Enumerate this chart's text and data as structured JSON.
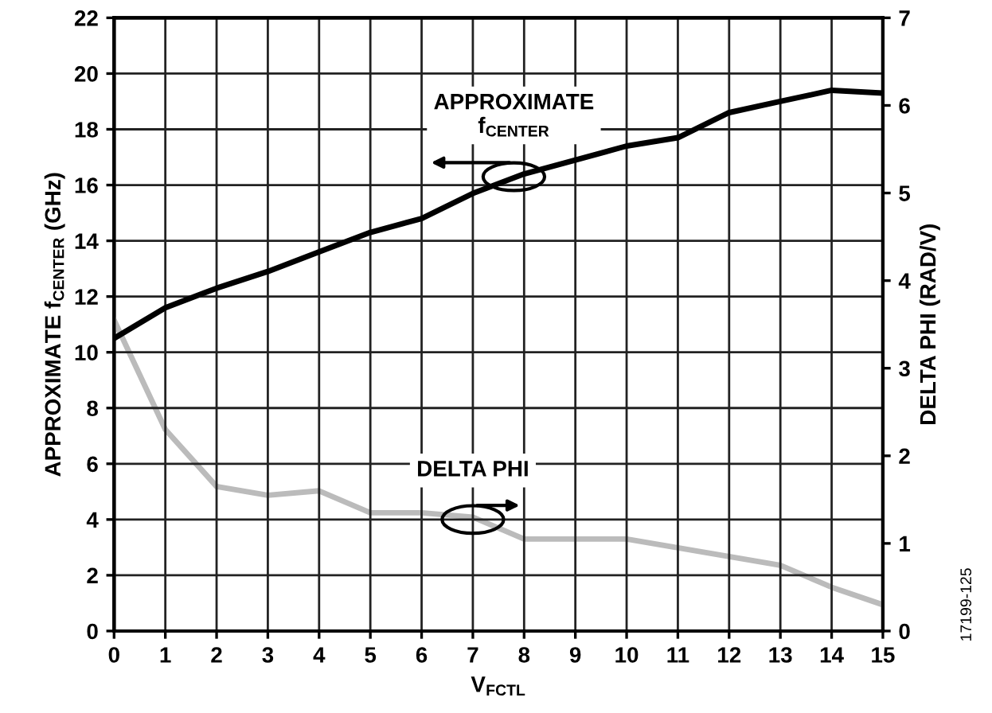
{
  "chart_data": {
    "type": "line",
    "xlabel": "V$_{FCTL}$",
    "ylabel": "APPROXIMATE f$_{CENTER}$ (GHz)",
    "y2label": "DELTA PHI (RAD/V)",
    "x": [
      0,
      1,
      2,
      3,
      4,
      5,
      6,
      7,
      8,
      9,
      10,
      11,
      12,
      13,
      14,
      15
    ],
    "series": [
      {
        "color": "#000000",
        "values": [
          10.5,
          11.6,
          12.3,
          12.9,
          13.6,
          14.3,
          14.8,
          15.7,
          16.4,
          16.9,
          17.4,
          17.7,
          18.6,
          19.0,
          19.4,
          19.3
        ]
      },
      {
        "color": "#bbbbbb",
        "axis": "y2",
        "values": [
          3.55,
          2.3,
          1.65,
          1.55,
          1.6,
          1.35,
          1.35,
          1.3,
          1.05,
          1.05,
          1.05,
          0.95,
          0.85,
          0.75,
          0.5,
          0.3
        ]
      }
    ],
    "xlim": [
      0,
      15
    ],
    "xticks": [
      0,
      1,
      2,
      3,
      4,
      5,
      6,
      7,
      8,
      9,
      10,
      11,
      12,
      13,
      14,
      15
    ],
    "ylim": [
      0,
      22
    ],
    "yticks": [
      0,
      2,
      4,
      6,
      8,
      10,
      12,
      14,
      16,
      18,
      20,
      22
    ],
    "y2lim": [
      0,
      7
    ],
    "y2ticks": [
      0,
      1,
      2,
      3,
      4,
      5,
      6,
      7
    ],
    "grid": true,
    "legend": false,
    "annotations": [
      {
        "text": "APPROXIMATE\nf$_{CENTER}$",
        "x": 7.8,
        "y": 16.3
      },
      {
        "text": "DELTA PHI",
        "x": 7,
        "y": 4.0
      },
      "17199-125"
    ]
  }
}
